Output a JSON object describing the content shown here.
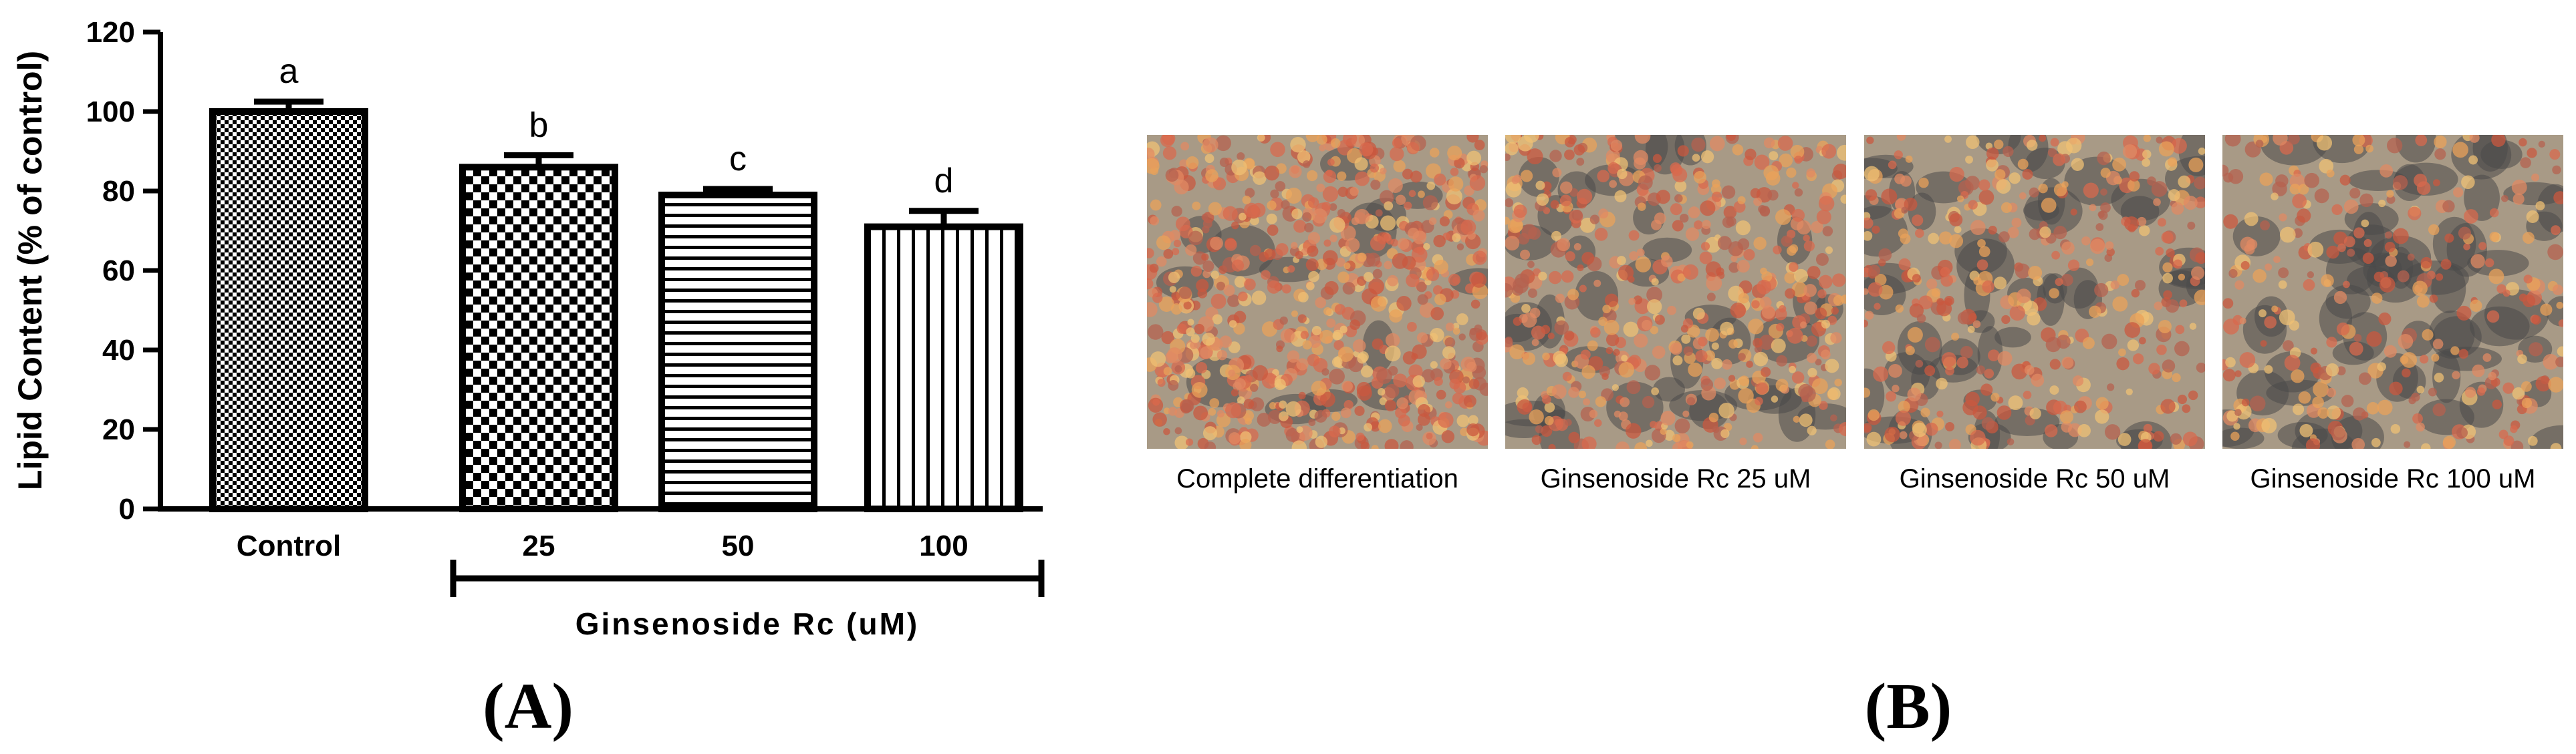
{
  "chart_data": {
    "type": "bar",
    "title": "",
    "ylabel": "Lipid Content (% of control)",
    "xlabel": "",
    "group_label": "Ginsenoside Rc (uM)",
    "ylim": [
      0,
      120
    ],
    "yticks": [
      0,
      20,
      40,
      60,
      80,
      100,
      120
    ],
    "categories": [
      "Control",
      "25",
      "50",
      "100"
    ],
    "values": [
      100,
      86,
      79,
      71
    ],
    "errors": [
      2.5,
      3,
      1.5,
      4
    ],
    "significance": [
      "a",
      "b",
      "c",
      "d"
    ],
    "patterns": [
      "fine-checker",
      "coarse-checker",
      "horizontal-stripes",
      "vertical-stripes"
    ],
    "grid": false,
    "legend": "none"
  },
  "panels": {
    "a_label": "(A)",
    "b_label": "(B)"
  },
  "micrographs": [
    {
      "caption": "Complete differentiation",
      "density": 0.85
    },
    {
      "caption": "Ginsenoside Rc 25 uM",
      "density": 0.6
    },
    {
      "caption": "Ginsenoside Rc 50 uM",
      "density": 0.45
    },
    {
      "caption": "Ginsenoside Rc 100 uM",
      "density": 0.35
    }
  ]
}
